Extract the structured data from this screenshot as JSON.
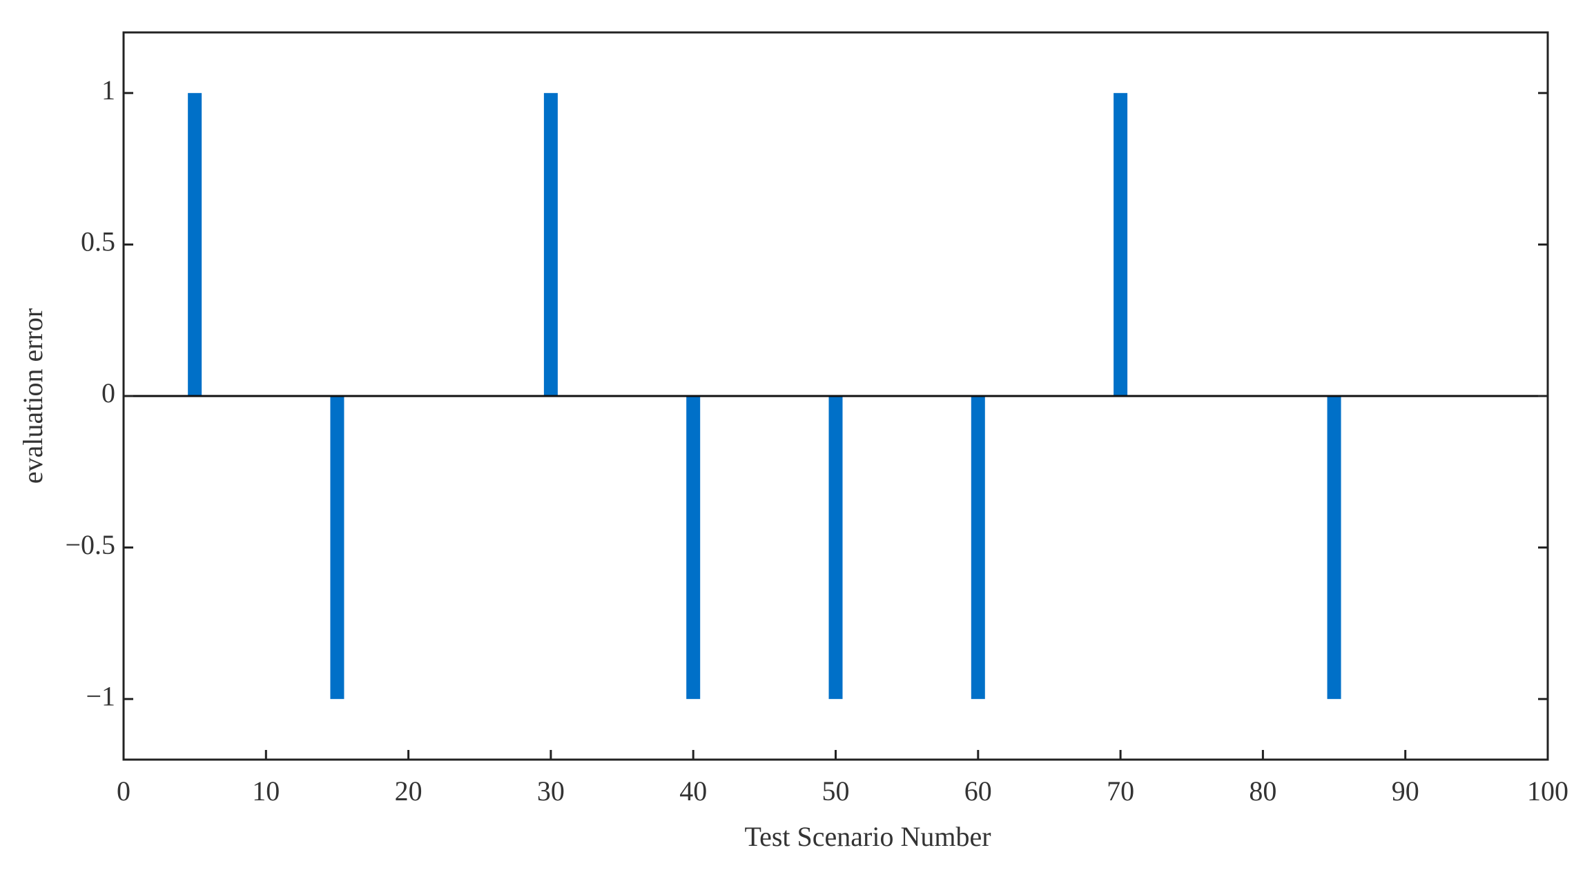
{
  "chart_data": {
    "type": "bar",
    "xlabel": "Test Scenario Number",
    "ylabel": "evaluation error",
    "x": [
      5,
      15,
      30,
      40,
      50,
      60,
      70,
      85
    ],
    "values": [
      1,
      -1,
      1,
      -1,
      -1,
      -1,
      1,
      -1
    ],
    "color": "#0070c8",
    "xlim": [
      0,
      100
    ],
    "xticks": [
      0,
      10,
      20,
      30,
      40,
      50,
      60,
      70,
      80,
      90,
      100
    ],
    "ylim": [
      -1.2,
      1.2
    ],
    "yticks": [
      {
        "value": -1,
        "label": "−1"
      },
      {
        "value": -0.5,
        "label": "−0.5"
      },
      0,
      0.5,
      1
    ],
    "grid": false
  }
}
